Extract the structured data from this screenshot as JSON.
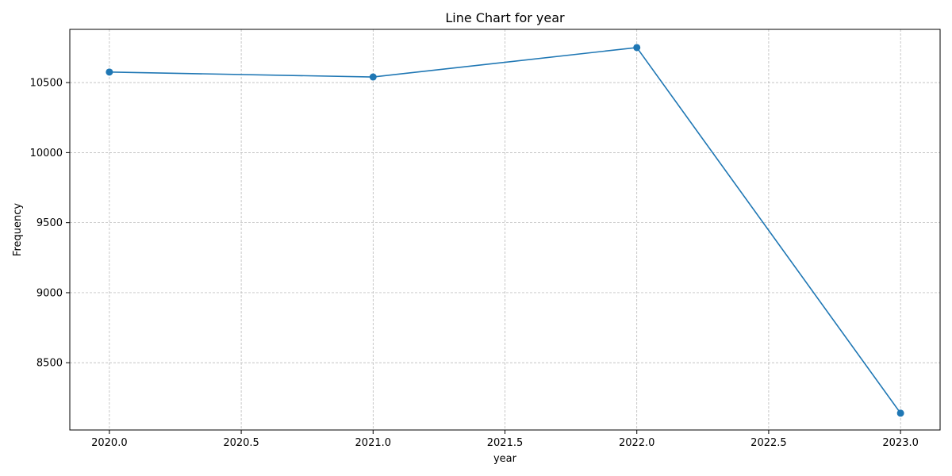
{
  "chart_data": {
    "type": "line",
    "title": "Line Chart for year",
    "xlabel": "year",
    "ylabel": "Frequency",
    "x": [
      2020.0,
      2021.0,
      2022.0,
      2023.0
    ],
    "xlim": [
      2019.85,
      2023.15
    ],
    "ylim": [
      8020,
      10880
    ],
    "x_ticks": [
      2020.0,
      2020.5,
      2021.0,
      2021.5,
      2022.0,
      2022.5,
      2023.0
    ],
    "x_tick_labels": [
      "2020.0",
      "2020.5",
      "2021.0",
      "2021.5",
      "2022.0",
      "2022.5",
      "2023.0"
    ],
    "y_ticks": [
      8500,
      9000,
      9500,
      10000,
      10500
    ],
    "y_tick_labels": [
      "8500",
      "9000",
      "9500",
      "10000",
      "10500"
    ],
    "series": [
      {
        "values": [
          10575,
          10540,
          10750,
          8140
        ],
        "color": "#1f77b4",
        "marker": "circle"
      }
    ],
    "grid": true,
    "grid_style": "dashed",
    "legend": "none"
  }
}
